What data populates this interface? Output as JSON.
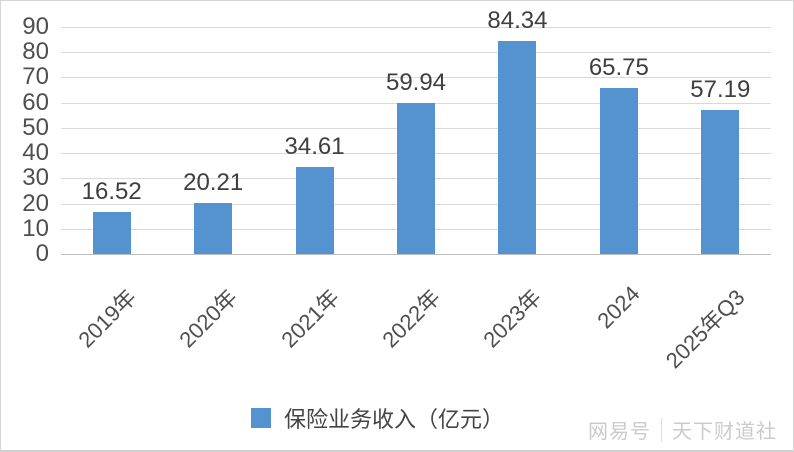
{
  "chart_data": {
    "type": "bar",
    "categories": [
      "2019年",
      "2020年",
      "2021年",
      "2022年",
      "2023年",
      "2024",
      "2025年Q3"
    ],
    "values": [
      16.52,
      20.21,
      34.61,
      59.94,
      84.34,
      65.75,
      57.19
    ],
    "title": "",
    "xlabel": "",
    "ylabel": "",
    "ylim": [
      0,
      90
    ],
    "yticks": [
      0,
      10,
      20,
      30,
      40,
      50,
      60,
      70,
      80,
      90
    ],
    "grid": true,
    "legend_entries": [
      "保险业务收入（亿元）"
    ],
    "legend_position": "bottom",
    "bar_color": "#5592d0",
    "gridline_color": "#d9d9d9",
    "tick_label_color": "#4f4f4f",
    "value_label_color": "#3f3f3f"
  },
  "legend": {
    "label": "保险业务收入（亿元）"
  },
  "watermark": {
    "brand": "网易号",
    "account": "天下财道社"
  }
}
